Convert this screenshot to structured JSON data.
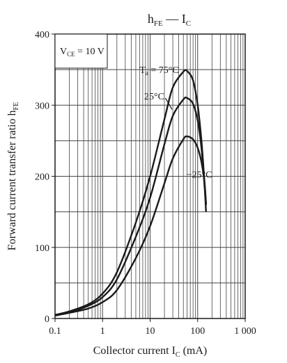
{
  "title": {
    "main": "h",
    "main_sub": "FE",
    "dash": " — ",
    "var": "I",
    "var_sub": "C"
  },
  "chart_data": {
    "type": "line",
    "x_scale": "log",
    "xlim": [
      0.1,
      1000
    ],
    "ylim": [
      0,
      400
    ],
    "x_ticks": [
      {
        "value": 0.1,
        "label": "0.1"
      },
      {
        "value": 1,
        "label": "1"
      },
      {
        "value": 10,
        "label": "10"
      },
      {
        "value": 100,
        "label": "100"
      },
      {
        "value": 1000,
        "label": "1 000"
      }
    ],
    "y_ticks": [
      {
        "value": 0,
        "label": "0"
      },
      {
        "value": 100,
        "label": "100"
      },
      {
        "value": 200,
        "label": "200"
      },
      {
        "value": 300,
        "label": "300"
      },
      {
        "value": 400,
        "label": "400"
      }
    ],
    "y_minor_step": 50,
    "grid": true,
    "xlabel": {
      "text": "Collector current  I",
      "sub": "C",
      "unit": "  (mA)"
    },
    "ylabel": {
      "text": "Forward current transfer ratio  h",
      "sub": "FE"
    },
    "condition": {
      "prefix": "V",
      "sub": "CE",
      "suffix": " = 10 V"
    },
    "series": [
      {
        "label_prefix": "T",
        "label_sub": "a",
        "label_suffix": " = 75°C",
        "x": [
          0.1,
          0.2,
          0.5,
          1,
          2,
          5,
          10,
          20,
          30,
          50,
          60,
          80,
          100,
          120,
          140,
          150
        ],
        "y": [
          5,
          10,
          20,
          35,
          65,
          135,
          200,
          280,
          325,
          347,
          348,
          335,
          300,
          250,
          190,
          160
        ]
      },
      {
        "label": "25°C",
        "x": [
          0.1,
          0.2,
          0.5,
          1,
          2,
          5,
          10,
          20,
          30,
          50,
          60,
          80,
          100,
          120,
          140,
          150
        ],
        "y": [
          5,
          9,
          18,
          30,
          55,
          115,
          170,
          245,
          285,
          308,
          310,
          302,
          278,
          240,
          185,
          150
        ]
      },
      {
        "label": "−25°C",
        "x": [
          0.1,
          0.2,
          0.5,
          1,
          2,
          5,
          10,
          20,
          30,
          50,
          60,
          80,
          100,
          120,
          140,
          150
        ],
        "y": [
          4,
          8,
          14,
          23,
          40,
          85,
          130,
          190,
          225,
          252,
          256,
          252,
          240,
          220,
          190,
          160
        ]
      }
    ]
  }
}
